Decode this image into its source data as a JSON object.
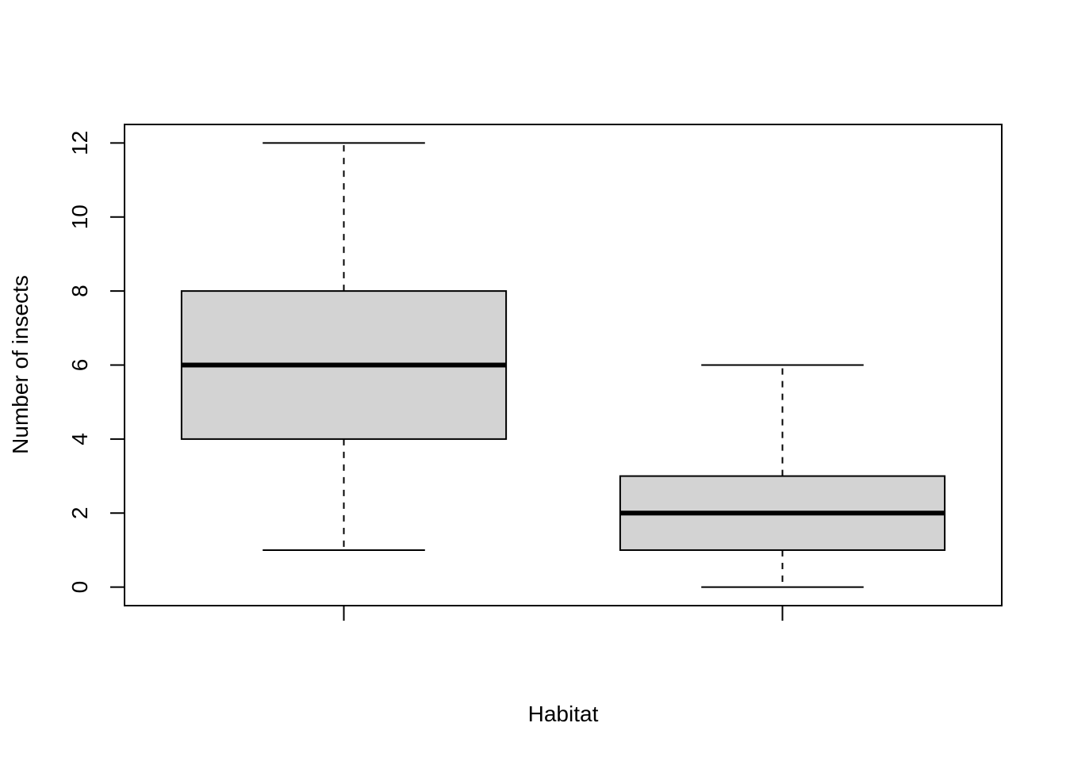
{
  "chart_data": {
    "type": "boxplot",
    "title": "",
    "xlabel": "Habitat",
    "ylabel": "Number of insects",
    "ylim": [
      -0.5,
      12.5
    ],
    "y_ticks": [
      0,
      2,
      4,
      6,
      8,
      10,
      12
    ],
    "categories": [
      "",
      ""
    ],
    "boxes": [
      {
        "whisker_low": 1,
        "q1": 4,
        "median": 6,
        "q3": 8,
        "whisker_high": 12
      },
      {
        "whisker_low": 0,
        "q1": 1,
        "median": 2,
        "q3": 3,
        "whisker_high": 6
      }
    ],
    "box_fill": "#d3d3d3",
    "grid": false
  }
}
